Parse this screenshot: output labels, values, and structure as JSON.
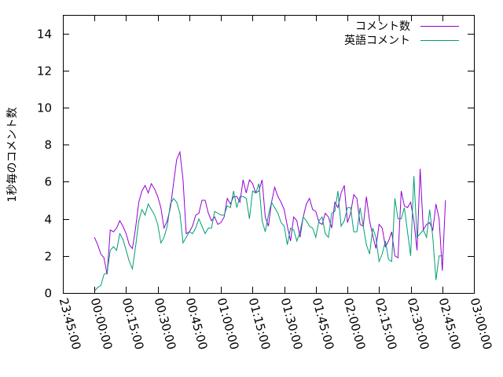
{
  "chart_data": {
    "type": "line",
    "ylabel": "1秒毎のコメント数",
    "xlabel": "",
    "ylim": [
      0,
      15
    ],
    "yticks": [
      0,
      2,
      4,
      6,
      8,
      10,
      12,
      14
    ],
    "xlim": [
      "23:45:00",
      "03:00:00"
    ],
    "xticks": [
      "23:45:00",
      "00:00:00",
      "00:15:00",
      "00:30:00",
      "00:45:00",
      "01:00:00",
      "01:15:00",
      "01:30:00",
      "01:45:00",
      "02:00:00",
      "02:15:00",
      "02:30:00",
      "02:45:00",
      "03:00:00"
    ],
    "grid": false,
    "legend_position": "top-right",
    "series": [
      {
        "name": "コメント数",
        "color": "#9400d3",
        "points": [
          [
            "00:00:00",
            3.0
          ],
          [
            "00:01:30",
            2.6
          ],
          [
            "00:03:00",
            2.1
          ],
          [
            "00:04:30",
            1.9
          ],
          [
            "00:06:00",
            1.0
          ],
          [
            "00:07:30",
            3.4
          ],
          [
            "00:09:00",
            3.3
          ],
          [
            "00:10:30",
            3.5
          ],
          [
            "00:12:00",
            3.9
          ],
          [
            "00:13:30",
            3.6
          ],
          [
            "00:15:00",
            3.2
          ],
          [
            "00:16:30",
            2.6
          ],
          [
            "00:18:00",
            2.4
          ],
          [
            "00:19:30",
            3.5
          ],
          [
            "00:21:00",
            4.9
          ],
          [
            "00:22:30",
            5.5
          ],
          [
            "00:24:00",
            5.8
          ],
          [
            "00:25:30",
            5.4
          ],
          [
            "00:27:00",
            5.9
          ],
          [
            "00:28:30",
            5.6
          ],
          [
            "00:30:00",
            5.2
          ],
          [
            "00:31:30",
            4.6
          ],
          [
            "00:33:00",
            3.5
          ],
          [
            "00:34:30",
            3.9
          ],
          [
            "00:36:00",
            4.6
          ],
          [
            "00:37:30",
            5.9
          ],
          [
            "00:39:00",
            7.2
          ],
          [
            "00:40:30",
            7.6
          ],
          [
            "00:42:00",
            6.1
          ],
          [
            "00:43:30",
            3.2
          ],
          [
            "00:45:00",
            3.3
          ],
          [
            "00:46:30",
            3.6
          ],
          [
            "00:48:00",
            4.2
          ],
          [
            "00:49:30",
            4.3
          ],
          [
            "00:51:00",
            5.0
          ],
          [
            "00:52:30",
            5.0
          ],
          [
            "00:54:00",
            4.3
          ],
          [
            "00:55:30",
            3.9
          ],
          [
            "00:57:00",
            4.1
          ],
          [
            "00:58:30",
            3.7
          ],
          [
            "01:00:00",
            3.8
          ],
          [
            "01:01:30",
            4.1
          ],
          [
            "01:03:00",
            5.1
          ],
          [
            "01:04:30",
            4.8
          ],
          [
            "01:06:00",
            5.2
          ],
          [
            "01:07:30",
            5.2
          ],
          [
            "01:09:00",
            4.9
          ],
          [
            "01:10:30",
            6.1
          ],
          [
            "01:12:00",
            5.4
          ],
          [
            "01:13:30",
            6.1
          ],
          [
            "01:15:00",
            5.9
          ],
          [
            "01:16:30",
            5.4
          ],
          [
            "01:18:00",
            5.5
          ],
          [
            "01:19:30",
            6.1
          ],
          [
            "01:21:00",
            4.1
          ],
          [
            "01:22:30",
            3.6
          ],
          [
            "01:24:00",
            4.9
          ],
          [
            "01:25:30",
            5.7
          ],
          [
            "01:27:00",
            5.2
          ],
          [
            "01:28:30",
            4.9
          ],
          [
            "01:30:00",
            4.5
          ],
          [
            "01:31:30",
            3.6
          ],
          [
            "01:33:00",
            2.8
          ],
          [
            "01:34:30",
            4.1
          ],
          [
            "01:36:00",
            3.9
          ],
          [
            "01:37:30",
            3.0
          ],
          [
            "01:39:00",
            4.1
          ],
          [
            "01:40:30",
            4.8
          ],
          [
            "01:42:00",
            5.1
          ],
          [
            "01:43:30",
            4.5
          ],
          [
            "01:45:00",
            4.4
          ],
          [
            "01:46:30",
            3.8
          ],
          [
            "01:48:00",
            3.7
          ],
          [
            "01:49:30",
            4.3
          ],
          [
            "01:51:00",
            4.1
          ],
          [
            "01:52:30",
            3.5
          ],
          [
            "01:54:00",
            4.9
          ],
          [
            "01:55:30",
            4.6
          ],
          [
            "01:57:00",
            5.4
          ],
          [
            "01:58:30",
            5.8
          ],
          [
            "02:00:00",
            3.8
          ],
          [
            "02:01:30",
            4.3
          ],
          [
            "02:03:00",
            5.3
          ],
          [
            "02:04:30",
            5.1
          ],
          [
            "02:06:00",
            3.7
          ],
          [
            "02:07:30",
            3.6
          ],
          [
            "02:09:00",
            5.2
          ],
          [
            "02:10:30",
            3.9
          ],
          [
            "02:12:00",
            3.1
          ],
          [
            "02:13:30",
            2.4
          ],
          [
            "02:15:00",
            3.7
          ],
          [
            "02:16:30",
            3.5
          ],
          [
            "02:18:00",
            2.5
          ],
          [
            "02:19:30",
            2.8
          ],
          [
            "02:21:00",
            3.3
          ],
          [
            "02:22:30",
            2.0
          ],
          [
            "02:24:00",
            1.9
          ],
          [
            "02:25:30",
            5.5
          ],
          [
            "02:27:00",
            4.7
          ],
          [
            "02:28:30",
            4.6
          ],
          [
            "02:30:00",
            4.9
          ],
          [
            "02:31:30",
            3.9
          ],
          [
            "02:33:00",
            2.3
          ],
          [
            "02:34:30",
            6.7
          ],
          [
            "02:36:00",
            3.4
          ],
          [
            "02:37:30",
            3.7
          ],
          [
            "02:39:00",
            3.8
          ],
          [
            "02:40:30",
            3.4
          ],
          [
            "02:42:00",
            4.8
          ],
          [
            "02:43:30",
            4.0
          ],
          [
            "02:45:00",
            1.2
          ],
          [
            "02:46:30",
            5.0
          ]
        ]
      },
      {
        "name": "英語コメント",
        "color": "#009e73",
        "points": [
          [
            "00:00:00",
            0.1
          ],
          [
            "00:01:30",
            0.3
          ],
          [
            "00:03:00",
            0.4
          ],
          [
            "00:04:30",
            1.0
          ],
          [
            "00:06:00",
            1.1
          ],
          [
            "00:07:30",
            2.3
          ],
          [
            "00:09:00",
            2.5
          ],
          [
            "00:10:30",
            2.3
          ],
          [
            "00:12:00",
            3.2
          ],
          [
            "00:13:30",
            2.9
          ],
          [
            "00:15:00",
            2.3
          ],
          [
            "00:16:30",
            1.7
          ],
          [
            "00:18:00",
            1.3
          ],
          [
            "00:19:30",
            2.5
          ],
          [
            "00:21:00",
            3.9
          ],
          [
            "00:22:30",
            4.5
          ],
          [
            "00:24:00",
            4.2
          ],
          [
            "00:25:30",
            4.8
          ],
          [
            "00:27:00",
            4.5
          ],
          [
            "00:28:30",
            4.2
          ],
          [
            "00:30:00",
            3.7
          ],
          [
            "00:31:30",
            2.7
          ],
          [
            "00:33:00",
            3.0
          ],
          [
            "00:34:30",
            3.6
          ],
          [
            "00:36:00",
            4.8
          ],
          [
            "00:37:30",
            5.1
          ],
          [
            "00:39:00",
            4.9
          ],
          [
            "00:40:30",
            4.3
          ],
          [
            "00:42:00",
            2.7
          ],
          [
            "00:43:30",
            3.0
          ],
          [
            "00:45:00",
            3.3
          ],
          [
            "00:46:30",
            3.2
          ],
          [
            "00:48:00",
            3.5
          ],
          [
            "00:49:30",
            4.0
          ],
          [
            "00:51:00",
            3.6
          ],
          [
            "00:52:30",
            3.2
          ],
          [
            "00:54:00",
            3.5
          ],
          [
            "00:55:30",
            3.5
          ],
          [
            "00:57:00",
            4.4
          ],
          [
            "00:58:30",
            4.3
          ],
          [
            "01:00:00",
            4.2
          ],
          [
            "01:01:30",
            4.2
          ],
          [
            "01:03:00",
            4.7
          ],
          [
            "01:04:30",
            4.6
          ],
          [
            "01:06:00",
            5.5
          ],
          [
            "01:07:30",
            4.6
          ],
          [
            "01:09:00",
            5.2
          ],
          [
            "01:10:30",
            5.2
          ],
          [
            "01:12:00",
            5.1
          ],
          [
            "01:13:30",
            4.0
          ],
          [
            "01:15:00",
            5.5
          ],
          [
            "01:16:30",
            5.4
          ],
          [
            "01:18:00",
            5.9
          ],
          [
            "01:19:30",
            3.9
          ],
          [
            "01:21:00",
            3.3
          ],
          [
            "01:22:30",
            4.2
          ],
          [
            "01:24:00",
            4.9
          ],
          [
            "01:25:30",
            4.6
          ],
          [
            "01:27:00",
            4.3
          ],
          [
            "01:28:30",
            3.8
          ],
          [
            "01:30:00",
            3.6
          ],
          [
            "01:31:30",
            2.6
          ],
          [
            "01:33:00",
            3.5
          ],
          [
            "01:34:30",
            3.4
          ],
          [
            "01:36:00",
            2.8
          ],
          [
            "01:37:30",
            3.3
          ],
          [
            "01:39:00",
            4.1
          ],
          [
            "01:40:30",
            3.9
          ],
          [
            "01:42:00",
            3.6
          ],
          [
            "01:43:30",
            3.5
          ],
          [
            "01:45:00",
            3.0
          ],
          [
            "01:46:30",
            3.9
          ],
          [
            "01:48:00",
            4.1
          ],
          [
            "01:49:30",
            3.2
          ],
          [
            "01:51:00",
            3.0
          ],
          [
            "01:52:30",
            4.3
          ],
          [
            "01:54:00",
            4.4
          ],
          [
            "01:55:30",
            5.5
          ],
          [
            "01:57:00",
            3.6
          ],
          [
            "01:58:30",
            3.9
          ],
          [
            "02:00:00",
            4.6
          ],
          [
            "02:01:30",
            4.6
          ],
          [
            "02:03:00",
            3.3
          ],
          [
            "02:04:30",
            3.3
          ],
          [
            "02:06:00",
            4.6
          ],
          [
            "02:07:30",
            3.6
          ],
          [
            "02:09:00",
            2.6
          ],
          [
            "02:10:30",
            2.1
          ],
          [
            "02:12:00",
            3.5
          ],
          [
            "02:13:30",
            3.0
          ],
          [
            "02:15:00",
            1.7
          ],
          [
            "02:16:30",
            2.1
          ],
          [
            "02:18:00",
            2.8
          ],
          [
            "02:19:30",
            1.8
          ],
          [
            "02:21:00",
            1.7
          ],
          [
            "02:22:30",
            5.1
          ],
          [
            "02:24:00",
            4.0
          ],
          [
            "02:25:30",
            4.0
          ],
          [
            "02:27:00",
            4.6
          ],
          [
            "02:28:30",
            3.3
          ],
          [
            "02:30:00",
            2.0
          ],
          [
            "02:31:30",
            6.3
          ],
          [
            "02:33:00",
            3.0
          ],
          [
            "02:34:30",
            3.2
          ],
          [
            "02:36:00",
            3.4
          ],
          [
            "02:37:30",
            3.0
          ],
          [
            "02:39:00",
            4.5
          ],
          [
            "02:40:30",
            3.0
          ],
          [
            "02:42:00",
            0.7
          ],
          [
            "02:43:30",
            2.0
          ],
          [
            "02:45:00",
            2.0
          ]
        ]
      }
    ]
  }
}
